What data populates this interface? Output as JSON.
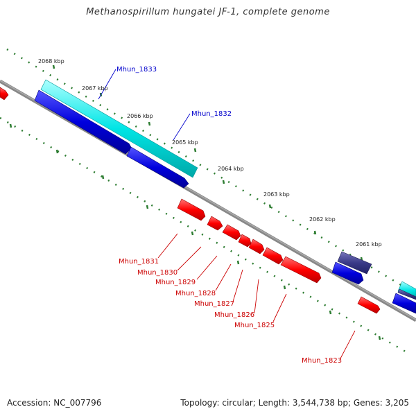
{
  "title": "Methanospirillum hungatei JF-1, complete genome",
  "footer": {
    "accession": "Accession: NC_007796",
    "summary": "Topology: circular; Length: 3,544,738 bp; Genes: 3,205"
  },
  "colors": {
    "backbone": "#888888",
    "tick": "#2e7d32",
    "forward_cds": "#00e5e5",
    "reverse_cds": "#0000dd",
    "other_strand_feature": "#ff0000",
    "rna_feature": "#3a3a88",
    "forward_label": "#0000cc",
    "reverse_label": "#cc0000"
  },
  "kbp_markers": [
    "2068 kbp",
    "2067 kbp",
    "2066 kbp",
    "2065 kbp",
    "2064 kbp",
    "2063 kbp",
    "2062 kbp",
    "2061 kbp"
  ],
  "gene_labels_outer": [
    "Mhun_1833",
    "Mhun_1832"
  ],
  "gene_labels_inner": [
    "Mhun_1831",
    "Mhun_1830",
    "Mhun_1829",
    "Mhun_1828",
    "Mhun_1827",
    "Mhun_1826",
    "Mhun_1825",
    "Mhun_1823"
  ]
}
